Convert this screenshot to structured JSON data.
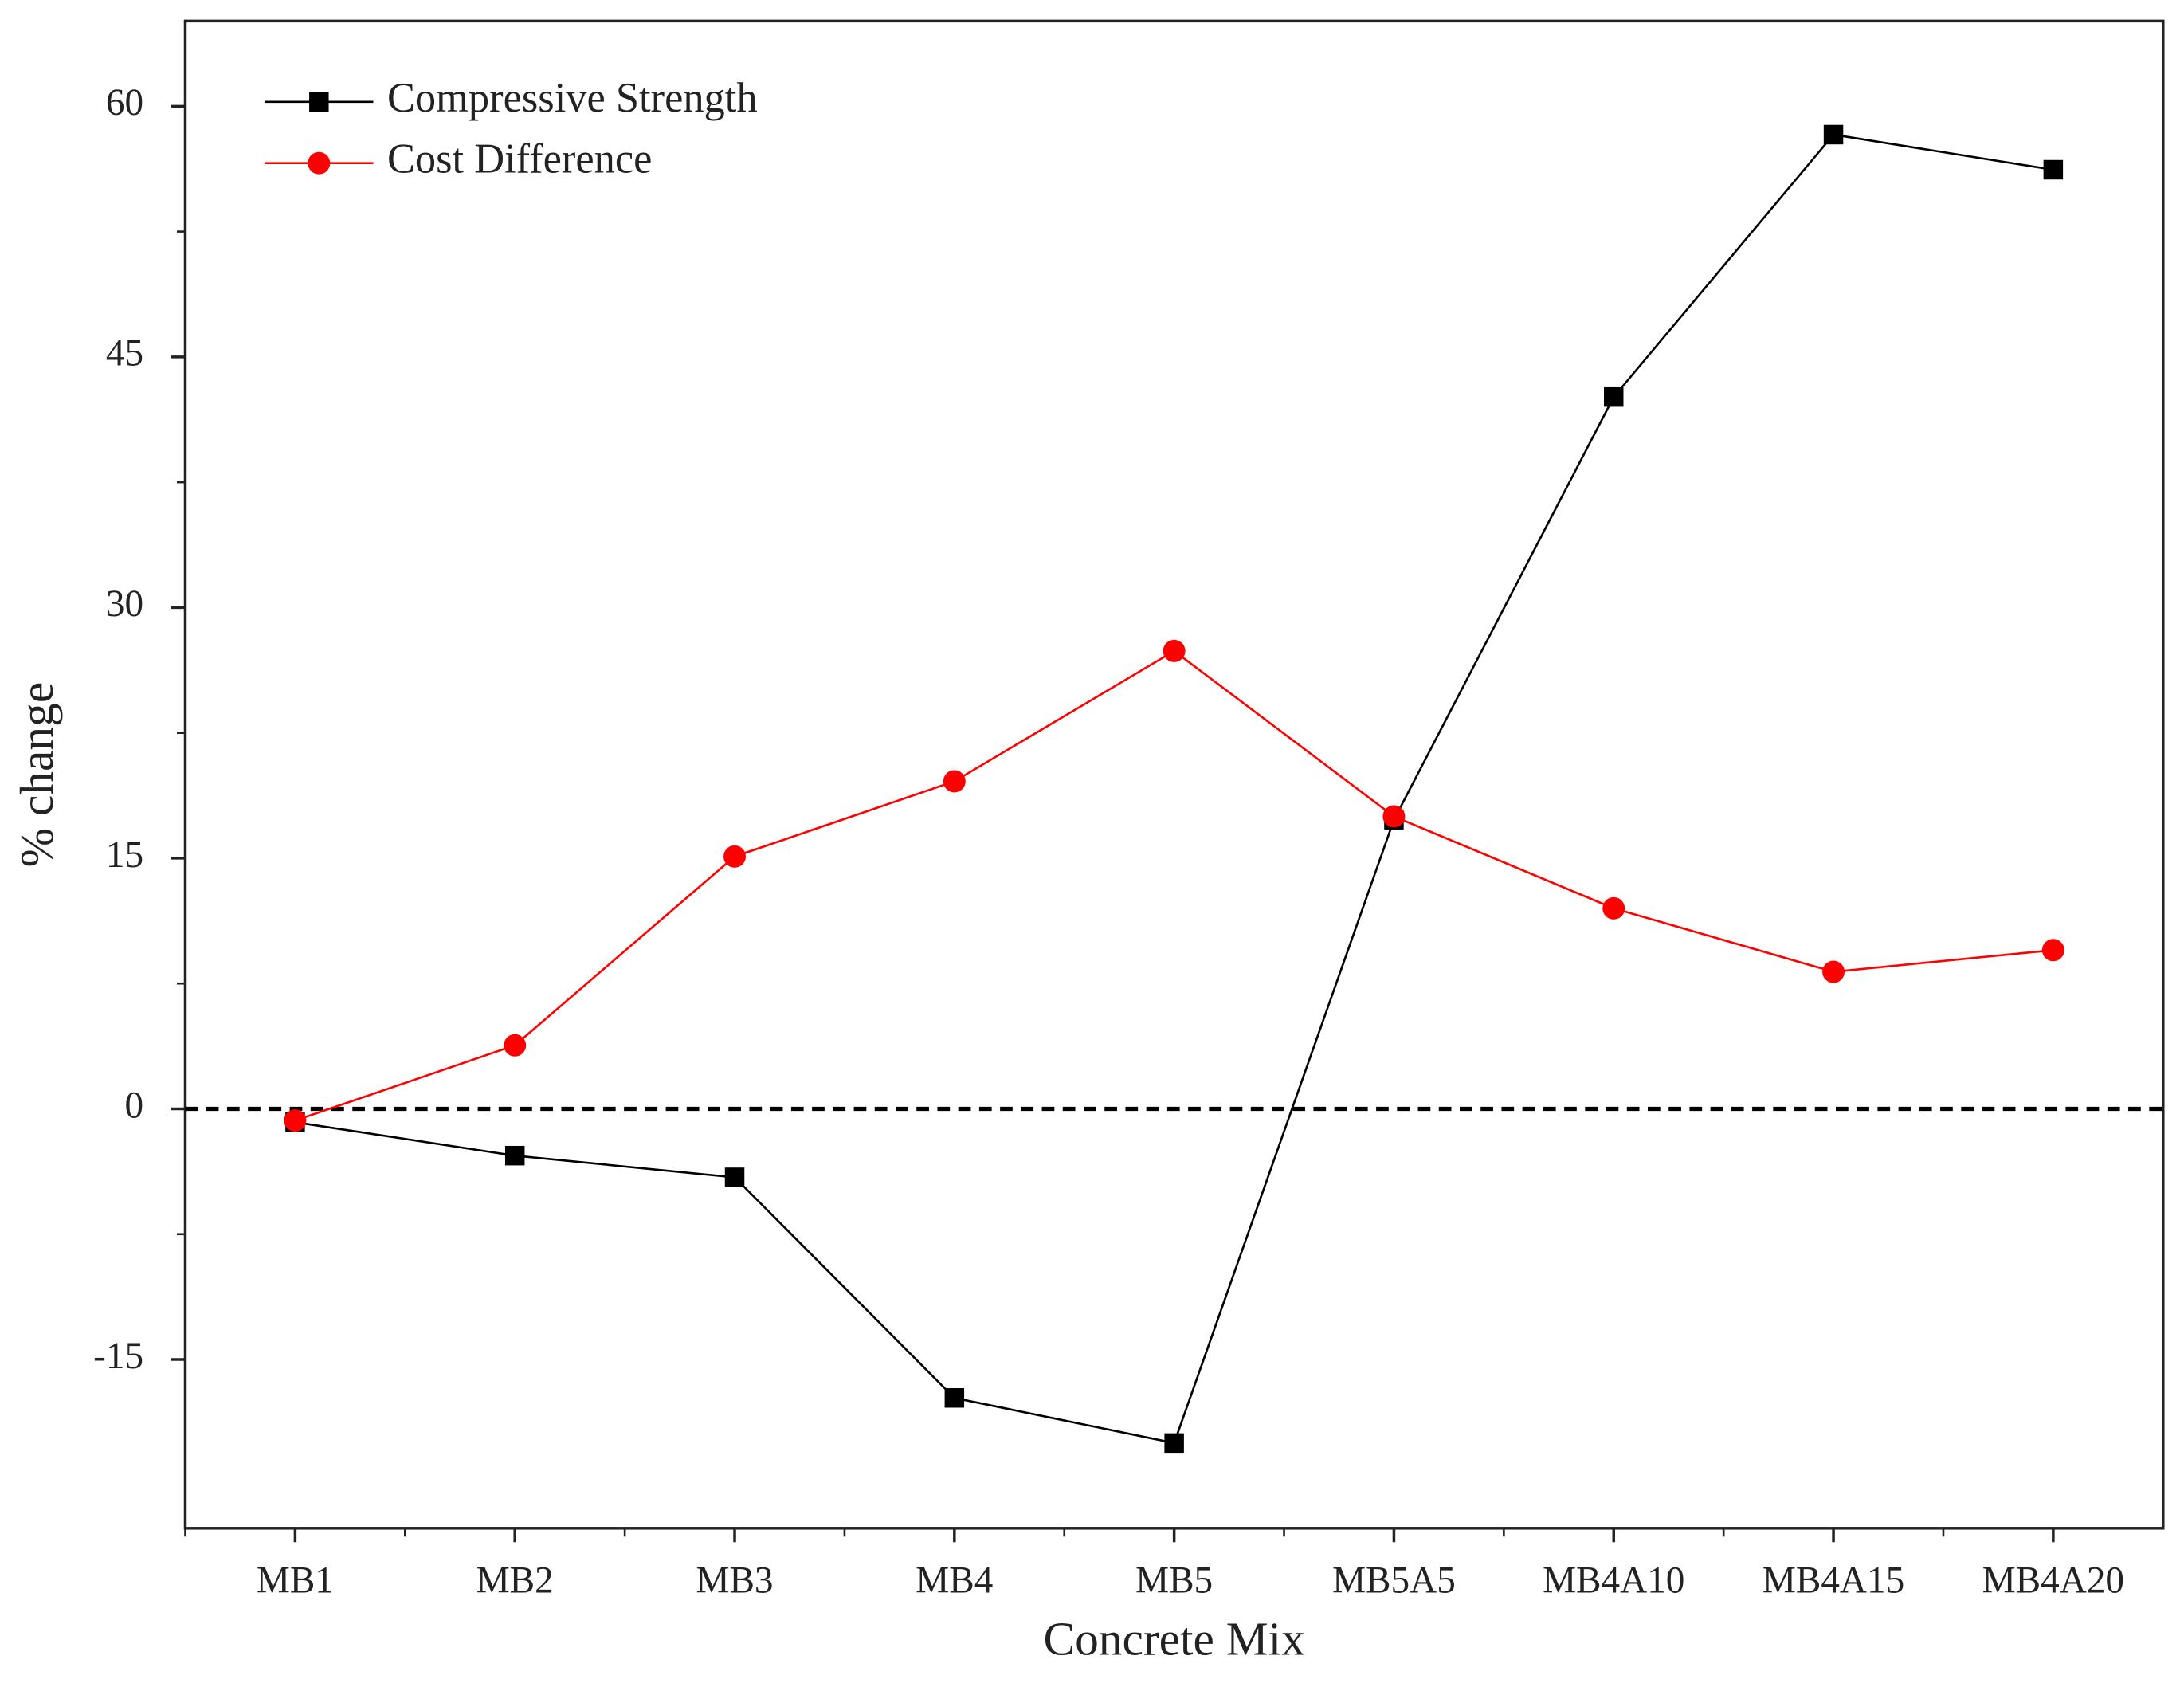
{
  "chart_data": {
    "type": "line",
    "x_label": "Concrete Mix",
    "y_label": "% change",
    "categories": [
      "MB1",
      "MB2",
      "MB3",
      "MB4",
      "MB5",
      "MB5A5",
      "MB4A10",
      "MB4A15",
      "MB4A20"
    ],
    "series": [
      {
        "name": "Compressive Strength",
        "color": "#000000",
        "marker": "square",
        "values": [
          -0.8,
          -2.8,
          -4.1,
          -17.3,
          -20,
          17.3,
          42.6,
          58.3,
          56.2
        ]
      },
      {
        "name": "Cost Difference",
        "color": "#ff0000",
        "marker": "circle",
        "values": [
          -0.7,
          3.8,
          15.1,
          19.6,
          27.4,
          17.5,
          12,
          8.2,
          9.5
        ]
      }
    ],
    "ylim": [
      -25.1,
      65.1
    ],
    "yticks": [
      -15,
      0,
      15,
      30,
      45,
      60
    ],
    "reference_line": 0,
    "legend": "top-left",
    "grid": false
  }
}
